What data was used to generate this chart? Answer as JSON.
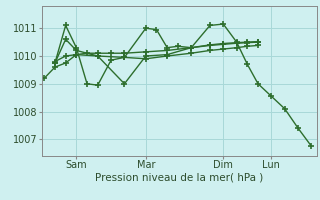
{
  "background_color": "#cff0f0",
  "grid_color": "#a8d8d8",
  "line_color": "#2d6e2d",
  "marker": "+",
  "markersize": 4,
  "linewidth": 1.0,
  "markeredgewidth": 1.2,
  "ylabel_ticks": [
    1007,
    1008,
    1009,
    1010,
    1011
  ],
  "xlabel": "Pression niveau de la mer( hPa )",
  "xtick_labels": [
    "Sam",
    "Mar",
    "Dim",
    "Lun"
  ],
  "xtick_positions": [
    0.12,
    0.38,
    0.67,
    0.85
  ],
  "ylim": [
    1006.4,
    1011.8
  ],
  "series": [
    {
      "x": [
        0.0,
        0.04,
        0.08,
        0.12,
        0.16,
        0.2,
        0.25,
        0.3,
        0.38,
        0.46,
        0.55,
        0.62,
        0.67,
        0.72,
        0.76,
        0.8
      ],
      "y": [
        1009.2,
        1009.6,
        1009.75,
        1010.05,
        1010.1,
        1010.1,
        1010.1,
        1010.1,
        1010.15,
        1010.2,
        1010.3,
        1010.38,
        1010.42,
        1010.46,
        1010.48,
        1010.5
      ]
    },
    {
      "x": [
        0.04,
        0.08,
        0.12,
        0.16,
        0.2,
        0.25,
        0.3,
        0.38,
        0.42,
        0.46,
        0.5,
        0.55,
        0.62,
        0.67,
        0.72,
        0.76,
        0.8,
        0.85,
        0.9,
        0.95,
        1.0
      ],
      "y": [
        1009.75,
        1011.1,
        1010.3,
        1009.0,
        1008.95,
        1009.85,
        1009.95,
        1011.0,
        1010.95,
        1010.3,
        1010.35,
        1010.3,
        1011.1,
        1011.15,
        1010.5,
        1009.7,
        1009.0,
        1008.55,
        1008.1,
        1007.4,
        1006.75
      ]
    },
    {
      "x": [
        0.04,
        0.08,
        0.12,
        0.2,
        0.3,
        0.38,
        0.46,
        0.55,
        0.62,
        0.67,
        0.72,
        0.76,
        0.8
      ],
      "y": [
        1009.75,
        1010.6,
        1010.2,
        1010.0,
        1009.0,
        1010.0,
        1010.05,
        1010.3,
        1010.4,
        1010.45,
        1010.48,
        1010.5,
        1010.52
      ]
    },
    {
      "x": [
        0.04,
        0.08,
        0.12,
        0.2,
        0.3,
        0.38,
        0.46,
        0.55,
        0.62,
        0.67,
        0.72,
        0.76,
        0.8
      ],
      "y": [
        1009.8,
        1010.0,
        1010.05,
        1010.0,
        1009.95,
        1009.9,
        1010.0,
        1010.1,
        1010.2,
        1010.25,
        1010.3,
        1010.35,
        1010.38
      ]
    }
  ]
}
